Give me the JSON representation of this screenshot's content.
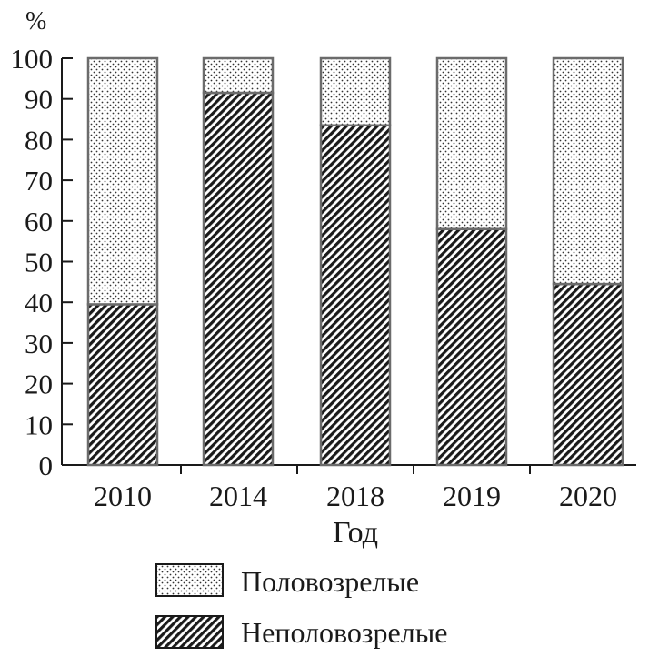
{
  "chart_data": {
    "type": "bar",
    "stacked": true,
    "title": "",
    "xlabel": "Год",
    "ylabel": "%",
    "ylim": [
      0,
      100
    ],
    "yticks": [
      0,
      10,
      20,
      30,
      40,
      50,
      60,
      70,
      80,
      90,
      100
    ],
    "categories": [
      "2010",
      "2014",
      "2018",
      "2019",
      "2020"
    ],
    "series": [
      {
        "name": "Неполовозрелые",
        "pattern": "diagonal-hatch",
        "values": [
          39.5,
          91.5,
          83.5,
          58,
          44.5
        ]
      },
      {
        "name": "Половозрелые",
        "pattern": "dots",
        "values": [
          60.5,
          8.5,
          16.5,
          42,
          55.5
        ]
      }
    ],
    "legend": {
      "placement": "bottom",
      "items": [
        "Половозрелые",
        "Неполовозрелые"
      ]
    },
    "grid": false,
    "colors": {
      "outline": "#6b6b6b",
      "axis": "#1a1a1a",
      "hatch": "#1a1a1a"
    }
  }
}
